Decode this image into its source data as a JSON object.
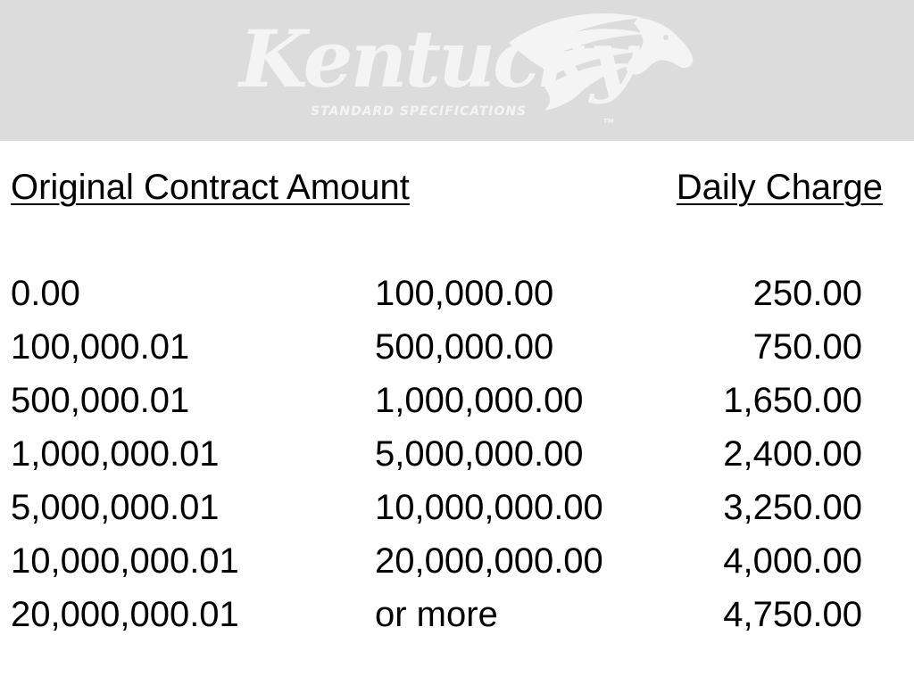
{
  "logo": {
    "word": "Kentucky",
    "subtitle": "STANDARD SPECIFICATIONS",
    "trademark": "TM",
    "icon": "horse-head-icon",
    "color": "#f4f4f4",
    "background": "#dcdcdc"
  },
  "table": {
    "header_left": "Original Contract Amount",
    "header_right": "Daily Charge",
    "rows": [
      {
        "from": "0.00",
        "to": "100,000.00",
        "charge": "250.00"
      },
      {
        "from": "100,000.01",
        "to": "500,000.00",
        "charge": "750.00"
      },
      {
        "from": "500,000.01",
        "to": "1,000,000.00",
        "charge": "1,650.00"
      },
      {
        "from": "1,000,000.01",
        "to": "5,000,000.00",
        "charge": "2,400.00"
      },
      {
        "from": "5,000,000.01",
        "to": "10,000,000.00",
        "charge": "3,250.00"
      },
      {
        "from": "10,000,000.01",
        "to": "20,000,000.00",
        "charge": "4,000.00"
      },
      {
        "from": "20,000,000.01",
        "to": "or more",
        "charge": "4,750.00"
      }
    ]
  }
}
